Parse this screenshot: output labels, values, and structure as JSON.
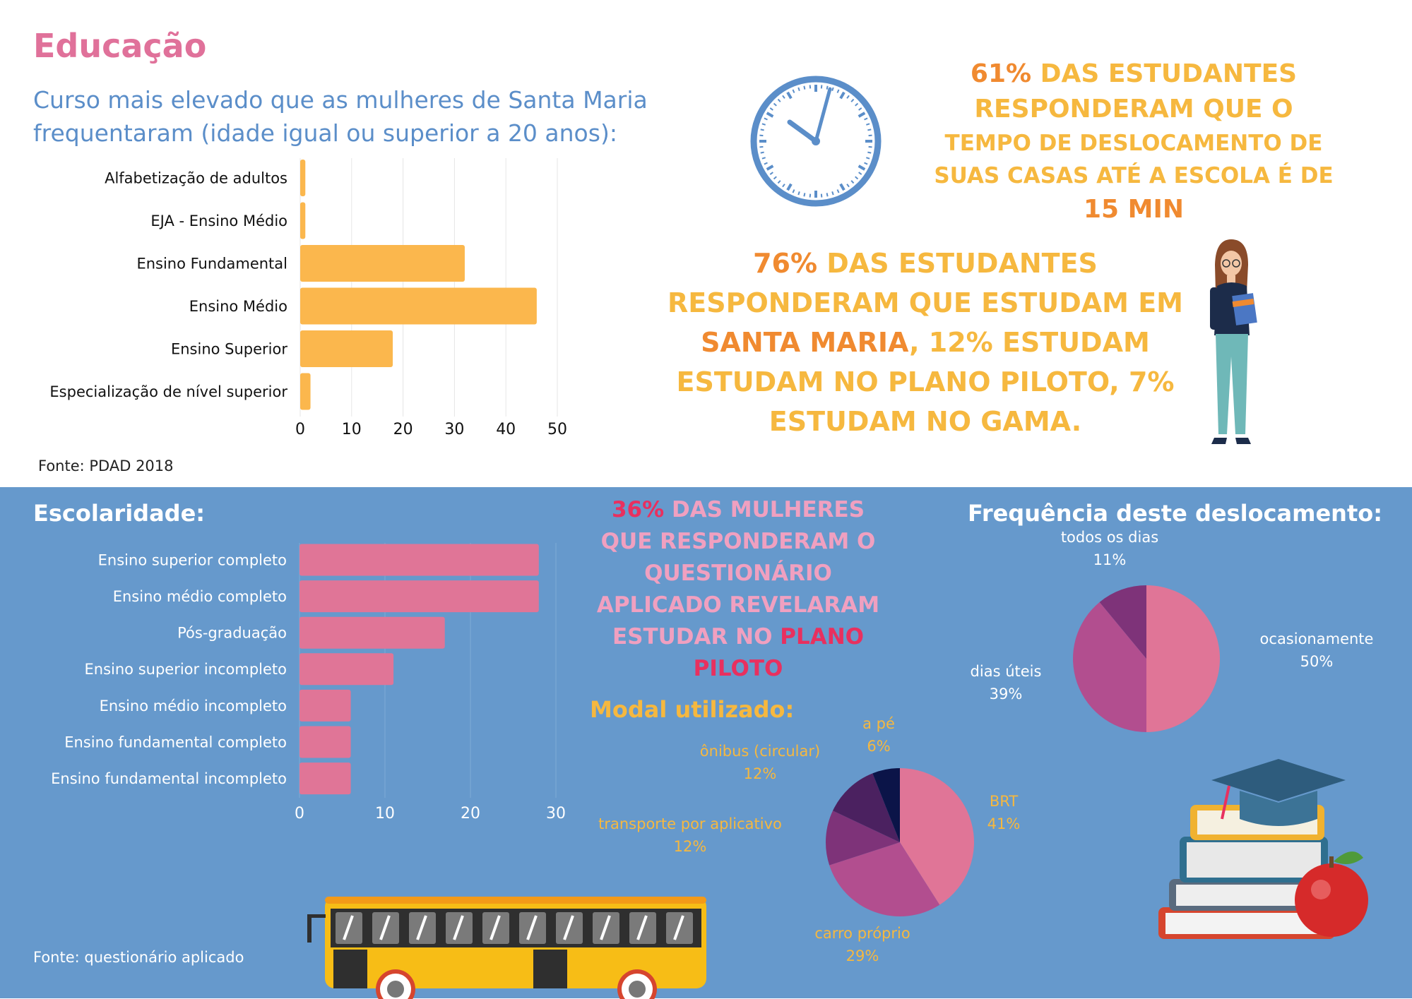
{
  "header": {
    "title": "Educação",
    "subtitle": "Curso mais elevado que as mulheres de Santa Maria frequentaram (idade igual ou superior a 20 anos):",
    "source_top": "Fonte: PDAD 2018"
  },
  "stats": {
    "stat1_pct": "61%",
    "stat1_text": "das estudantes responderam que o",
    "stat1_line2": "tempo de deslocamento de suas casas até a escola é de",
    "stat1_hl": "15 min",
    "stat2_pct": "76%",
    "stat2_text1": "das estudantes responderam que estudam em",
    "stat2_hl": "Santa Maria",
    "stat2_text2": ", 12% estudam estudam no Plano Piloto, 7% estudam no Gama.",
    "stat3_pct": "36%",
    "stat3_text": "das mulheres que responderam o questionário aplicado revelaram estudar no",
    "stat3_hl": "Plano Piloto"
  },
  "bottom": {
    "escolaridade_title": "Escolaridade:",
    "frequencia_title": "Frequência deste deslocamento:",
    "modal_title": "Modal utilizado:",
    "source_bottom": "Fonte: questionário aplicado"
  },
  "colors": {
    "bar_orange": "#fbb74d",
    "bar_pink": "#e07597",
    "bg_blue": "#6699cc",
    "title_pink": "#e0719a",
    "subtitle_blue": "#5b8ec9",
    "stat_orange": "#f6b83f",
    "stat_dark_orange": "#f08a30",
    "stat_pink": "#f0a0c0",
    "stat_red": "#e8305f"
  },
  "chart_data": [
    {
      "type": "bar",
      "orientation": "horizontal",
      "categories": [
        "Alfabetização de adultos",
        "EJA - Ensino Médio",
        "Ensino Fundamental",
        "Ensino Médio",
        "Ensino Superior",
        "Especialização de nível superior"
      ],
      "values": [
        1,
        1,
        32,
        46,
        18,
        2
      ],
      "ticks": [
        "0",
        "10",
        "20",
        "30",
        "40",
        "50"
      ],
      "xlim": [
        0,
        50
      ],
      "grid": true
    },
    {
      "type": "bar",
      "orientation": "horizontal",
      "categories": [
        "Ensino superior completo",
        "Ensino médio completo",
        "Pós-graduação",
        "Ensino superior incompleto",
        "Ensino médio incompleto",
        "Ensino fundamental completo",
        "Ensino fundamental incompleto"
      ],
      "values": [
        28,
        28,
        17,
        11,
        6,
        6,
        6
      ],
      "ticks": [
        "0",
        "10",
        "20",
        "30"
      ],
      "xlim": [
        0,
        30
      ],
      "grid": true
    },
    {
      "type": "pie",
      "slices": [
        {
          "label": "ocasionamente",
          "pct": "50%",
          "value": 50,
          "color": "#e07597"
        },
        {
          "label": "dias úteis",
          "pct": "39%",
          "value": 39,
          "color": "#b24e8f"
        },
        {
          "label": "todos os dias",
          "pct": "11%",
          "value": 11,
          "color": "#7e3379"
        }
      ]
    },
    {
      "type": "pie",
      "slices": [
        {
          "label": "BRT",
          "pct": "41%",
          "value": 41,
          "color": "#e07597"
        },
        {
          "label": "carro próprio",
          "pct": "29%",
          "value": 29,
          "color": "#b24e8f"
        },
        {
          "label": "transporte por aplicativo",
          "pct": "12%",
          "value": 12,
          "color": "#7e3379"
        },
        {
          "label": "ônibus (circular)",
          "pct": "12%",
          "value": 12,
          "color": "#4b2160"
        },
        {
          "label": "a pé",
          "pct": "6%",
          "value": 6,
          "color": "#0b1448"
        }
      ]
    }
  ]
}
